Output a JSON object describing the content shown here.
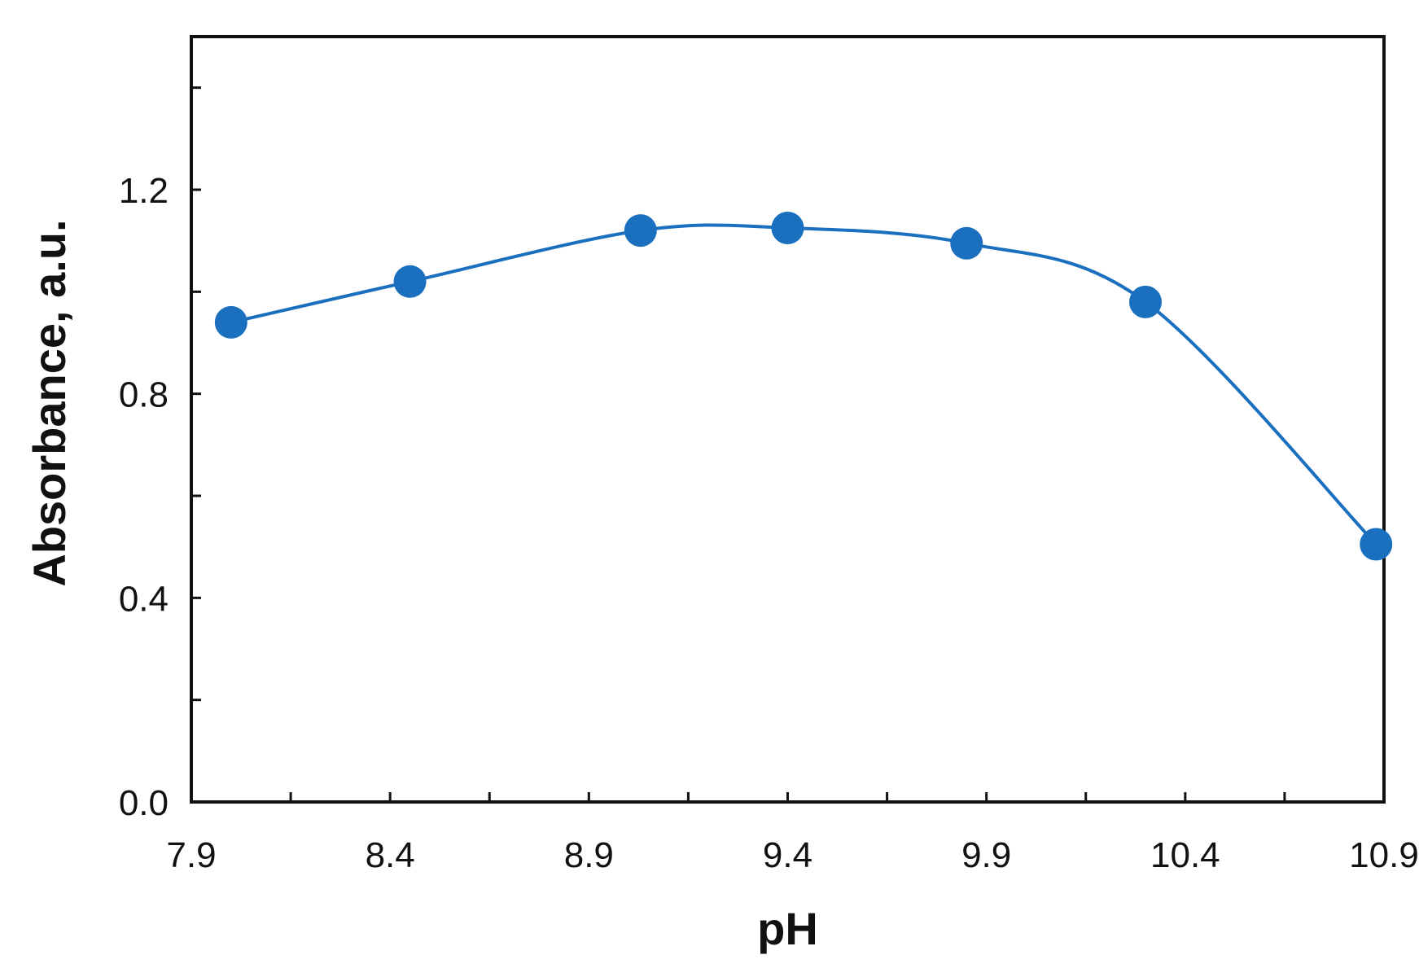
{
  "chart_data": {
    "type": "line",
    "title": "",
    "xlabel": "pH",
    "ylabel": "Absorbance, a.u.",
    "xlim": [
      7.9,
      10.9
    ],
    "ylim": [
      0.0,
      1.5
    ],
    "x_ticks": [
      7.9,
      8.4,
      8.9,
      9.4,
      9.9,
      10.4,
      10.9
    ],
    "x_tick_labels": [
      "7.9",
      "8.4",
      "8.9",
      "9.4",
      "9.9",
      "10.4",
      "10.9"
    ],
    "y_ticks": [
      0.0,
      0.4,
      0.8,
      1.2
    ],
    "y_tick_labels": [
      "0.0",
      "0.4",
      "0.8",
      "1.2"
    ],
    "grid": false,
    "legend": "none",
    "series": [
      {
        "color": "#1a6fbf",
        "marker": "circle",
        "smooth": true,
        "x": [
          8.0,
          8.45,
          9.03,
          9.4,
          9.85,
          10.3,
          10.88
        ],
        "y": [
          0.94,
          1.02,
          1.12,
          1.125,
          1.095,
          0.98,
          0.505
        ]
      }
    ]
  }
}
